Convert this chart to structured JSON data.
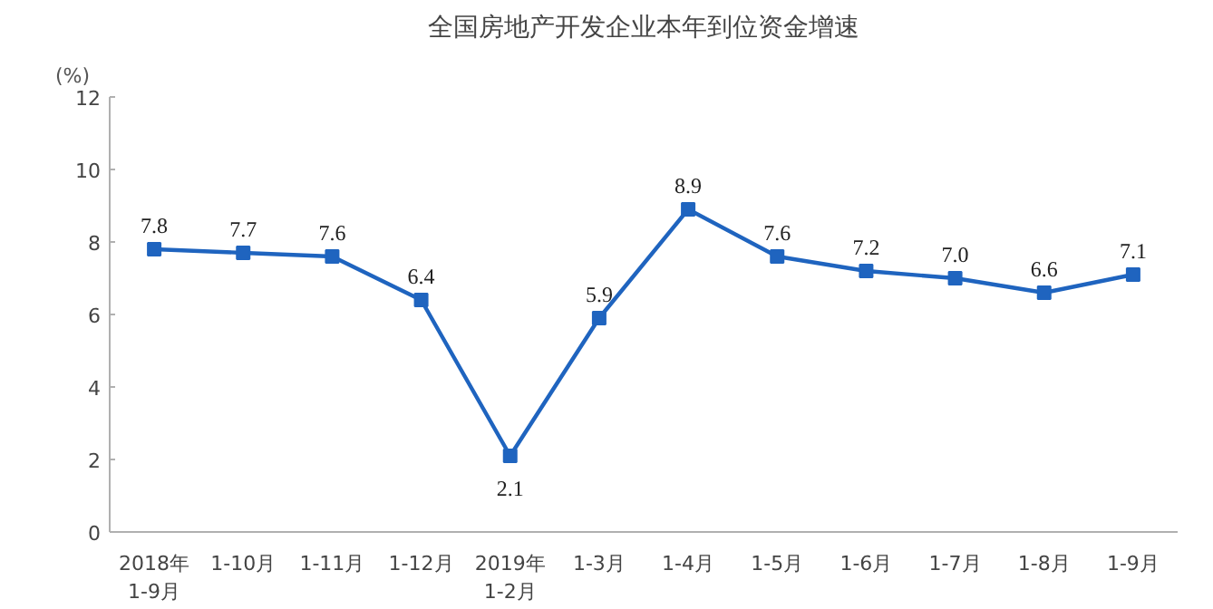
{
  "chart_data": {
    "type": "line",
    "title": "全国房地产开发企业本年到位资金增速",
    "ylabel": "(%)",
    "categories": [
      "2018年\n1-9月",
      "1-10月",
      "1-11月",
      "1-12月",
      "2019年\n1-2月",
      "1-3月",
      "1-4月",
      "1-5月",
      "1-6月",
      "1-7月",
      "1-8月",
      "1-9月"
    ],
    "series": [
      {
        "color": "#1f64bf",
        "values": [
          7.8,
          7.7,
          7.6,
          6.4,
          2.1,
          5.9,
          8.9,
          7.6,
          7.2,
          7.0,
          6.6,
          7.1
        ]
      }
    ],
    "value_labels": [
      "7.8",
      "7.7",
      "7.6",
      "6.4",
      "2.1",
      "5.9",
      "8.9",
      "7.6",
      "7.2",
      "7.0",
      "6.6",
      "7.1"
    ],
    "ylim": [
      0,
      12
    ],
    "yticks": [
      0,
      2,
      4,
      6,
      8,
      10,
      12
    ],
    "grid": false,
    "marker": "square",
    "line_style": "solid"
  }
}
